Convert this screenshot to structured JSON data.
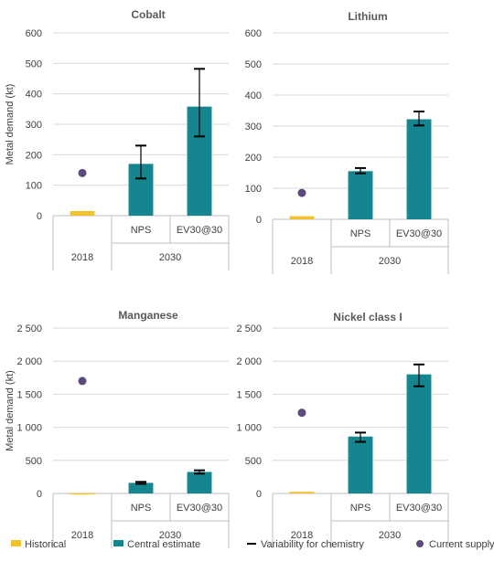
{
  "legend": [
    {
      "key": "historical",
      "label": "Historical",
      "color": "#f2c12e",
      "kind": "rect"
    },
    {
      "key": "central",
      "label": "Central estimate",
      "color": "#15858f",
      "kind": "rect"
    },
    {
      "key": "variability",
      "label": "Variability for chemistry",
      "color": "#000000",
      "kind": "dash"
    },
    {
      "key": "current",
      "label": "Current supply",
      "color": "#5e4a7a",
      "kind": "dot"
    }
  ],
  "chart_data": [
    {
      "type": "bar",
      "title": "Cobalt",
      "ylabel": "Metal demand (kt)",
      "ylim": [
        0,
        600
      ],
      "yticks": [
        0,
        100,
        200,
        300,
        400,
        500,
        600
      ],
      "ytick_labels": [
        "0",
        "100",
        "200",
        "300",
        "400",
        "500",
        "600"
      ],
      "categories": [
        "2018",
        "NPS",
        "EV30@30"
      ],
      "groups": [
        {
          "label": "2018",
          "span": [
            0,
            0
          ]
        },
        {
          "label": "2030",
          "span": [
            1,
            2
          ]
        }
      ],
      "series": [
        {
          "name": "Historical",
          "values": [
            15,
            null,
            null
          ]
        },
        {
          "name": "Central estimate",
          "values": [
            null,
            170,
            358
          ]
        }
      ],
      "variability": [
        null,
        [
          122,
          230
        ],
        [
          260,
          482
        ]
      ],
      "current_supply": 140
    },
    {
      "type": "bar",
      "title": "Lithium",
      "ylabel": "",
      "ylim": [
        0,
        600
      ],
      "yticks": [
        0,
        100,
        200,
        300,
        400,
        500,
        600
      ],
      "ytick_labels": [
        "0",
        "100",
        "200",
        "300",
        "400",
        "500",
        "600"
      ],
      "categories": [
        "2018",
        "NPS",
        "EV30@30"
      ],
      "groups": [
        {
          "label": "2018",
          "span": [
            0,
            0
          ]
        },
        {
          "label": "2030",
          "span": [
            1,
            2
          ]
        }
      ],
      "series": [
        {
          "name": "Historical",
          "values": [
            10,
            null,
            null
          ]
        },
        {
          "name": "Central estimate",
          "values": [
            null,
            155,
            322
          ]
        }
      ],
      "variability": [
        null,
        [
          148,
          165
        ],
        [
          302,
          347
        ]
      ],
      "current_supply": 85
    },
    {
      "type": "bar",
      "title": "Manganese",
      "ylabel": "Metal demand (kt)",
      "ylim": [
        0,
        2500
      ],
      "yticks": [
        0,
        500,
        1000,
        1500,
        2000,
        2500
      ],
      "ytick_labels": [
        "0",
        "500",
        "1 000",
        "1 500",
        "2 000",
        "2 500"
      ],
      "categories": [
        "2018",
        "NPS",
        "EV30@30"
      ],
      "groups": [
        {
          "label": "2018",
          "span": [
            0,
            0
          ]
        },
        {
          "label": "2030",
          "span": [
            1,
            2
          ]
        }
      ],
      "series": [
        {
          "name": "Historical",
          "values": [
            5,
            null,
            null
          ]
        },
        {
          "name": "Central estimate",
          "values": [
            null,
            160,
            325
          ]
        }
      ],
      "variability": [
        null,
        [
          145,
          175
        ],
        [
          300,
          350
        ]
      ],
      "current_supply": 1700
    },
    {
      "type": "bar",
      "title": "Nickel class I",
      "ylabel": "",
      "ylim": [
        0,
        2500
      ],
      "yticks": [
        0,
        500,
        1000,
        1500,
        2000,
        2500
      ],
      "ytick_labels": [
        "0",
        "500",
        "1 000",
        "1 500",
        "2 000",
        "2 500"
      ],
      "categories": [
        "2018",
        "NPS",
        "EV30@30"
      ],
      "groups": [
        {
          "label": "2018",
          "span": [
            0,
            0
          ]
        },
        {
          "label": "2030",
          "span": [
            1,
            2
          ]
        }
      ],
      "series": [
        {
          "name": "Historical",
          "values": [
            25,
            null,
            null
          ]
        },
        {
          "name": "Central estimate",
          "values": [
            null,
            860,
            1800
          ]
        }
      ],
      "variability": [
        null,
        [
          780,
          920
        ],
        [
          1620,
          1950
        ]
      ],
      "current_supply": 1220
    }
  ]
}
